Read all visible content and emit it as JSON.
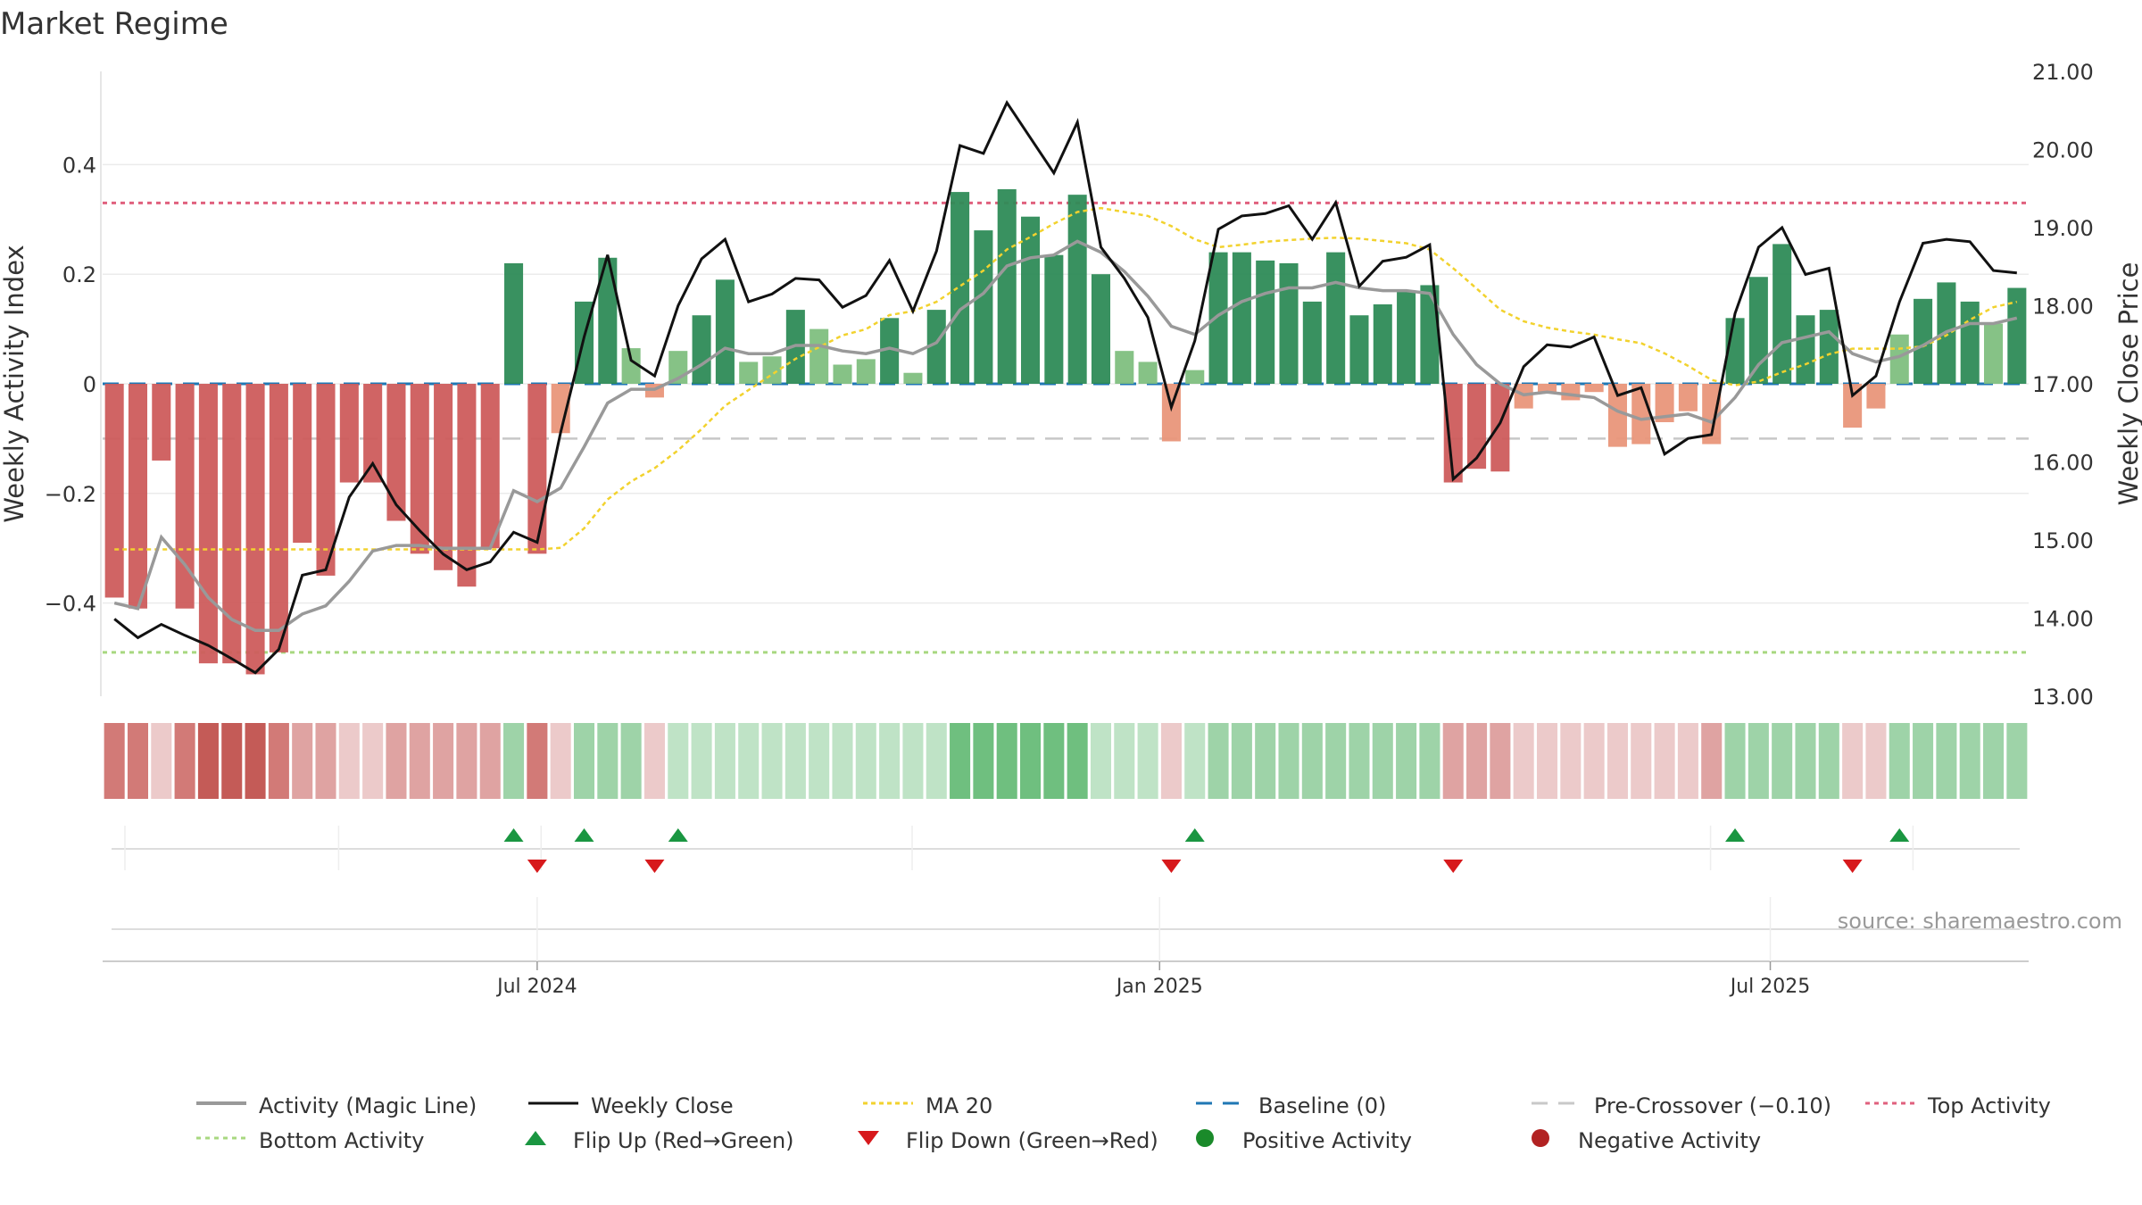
{
  "chart_data": {
    "type": "bar",
    "title": "Market Regime",
    "ylabel_left": "Weekly Activity Index",
    "ylabel_right": "Weekly Close Price",
    "source": "source: sharemaestro.com",
    "left_axis": {
      "ylim": [
        -0.57,
        0.57
      ],
      "ticks": [
        0.4,
        0.2,
        0,
        -0.2,
        -0.4
      ],
      "tick_labels": [
        "0.4",
        "0.2",
        "0",
        "−0.2",
        "−0.4"
      ]
    },
    "right_axis": {
      "ylim": [
        13.0,
        21.0
      ],
      "ticks": [
        21,
        20,
        19,
        18,
        17,
        16,
        15,
        14,
        13
      ],
      "tick_labels": [
        "21.00",
        "20.00",
        "19.00",
        "18.00",
        "17.00",
        "16.00",
        "15.00",
        "14.00",
        "13.00"
      ]
    },
    "x_ticks": [
      {
        "index": 18,
        "label": "Jul 2024"
      },
      {
        "index": 44.5,
        "label": "Jan 2025"
      },
      {
        "index": 70.5,
        "label": "Jul 2025"
      }
    ],
    "reference_lines": {
      "top_activity": 0.33,
      "bottom_activity": -0.49,
      "pre_crossover": -0.1,
      "baseline": 0
    },
    "activity": [
      -0.39,
      -0.41,
      -0.14,
      -0.41,
      -0.51,
      -0.51,
      -0.53,
      -0.49,
      -0.29,
      -0.35,
      -0.18,
      -0.18,
      -0.25,
      -0.31,
      -0.34,
      -0.37,
      -0.3,
      0.22,
      -0.31,
      -0.09,
      0.15,
      0.23,
      0.065,
      -0.025,
      0.06,
      0.125,
      0.19,
      0.04,
      0.05,
      0.135,
      0.1,
      0.035,
      0.045,
      0.12,
      0.02,
      0.135,
      0.35,
      0.28,
      0.355,
      0.305,
      0.235,
      0.345,
      0.2,
      0.06,
      0.04,
      -0.105,
      0.025,
      0.24,
      0.24,
      0.225,
      0.22,
      0.15,
      0.24,
      0.125,
      0.145,
      0.17,
      0.18,
      -0.18,
      -0.155,
      -0.16,
      -0.045,
      -0.015,
      -0.03,
      -0.015,
      -0.115,
      -0.11,
      -0.07,
      -0.05,
      -0.11,
      0.12,
      0.195,
      0.255,
      0.125,
      0.135,
      -0.08,
      -0.045,
      0.09,
      0.155,
      0.185,
      0.15,
      0.11,
      0.175
    ],
    "magic_line": [
      -0.4,
      -0.41,
      -0.28,
      -0.33,
      -0.39,
      -0.43,
      -0.45,
      -0.45,
      -0.42,
      -0.405,
      -0.36,
      -0.305,
      -0.295,
      -0.295,
      -0.3,
      -0.3,
      -0.3,
      -0.195,
      -0.215,
      -0.19,
      -0.115,
      -0.035,
      -0.01,
      -0.01,
      0.01,
      0.035,
      0.065,
      0.055,
      0.055,
      0.07,
      0.07,
      0.06,
      0.055,
      0.065,
      0.055,
      0.075,
      0.135,
      0.165,
      0.215,
      0.23,
      0.235,
      0.26,
      0.24,
      0.205,
      0.16,
      0.105,
      0.09,
      0.125,
      0.15,
      0.165,
      0.175,
      0.175,
      0.185,
      0.175,
      0.17,
      0.17,
      0.165,
      0.09,
      0.035,
      0.0,
      -0.02,
      -0.015,
      -0.02,
      -0.025,
      -0.05,
      -0.065,
      -0.06,
      -0.055,
      -0.07,
      -0.025,
      0.035,
      0.075,
      0.085,
      0.095,
      0.055,
      0.04,
      0.05,
      0.07,
      0.095,
      0.11,
      0.11,
      0.12
    ],
    "weekly_close": [
      13.99,
      13.75,
      13.92,
      13.78,
      13.65,
      13.48,
      13.3,
      13.6,
      14.55,
      14.62,
      15.55,
      15.98,
      15.45,
      15.12,
      14.82,
      14.62,
      14.72,
      15.1,
      14.97,
      16.38,
      17.6,
      18.65,
      17.3,
      17.1,
      18.0,
      18.6,
      18.85,
      18.05,
      18.15,
      18.35,
      18.33,
      17.98,
      18.13,
      18.58,
      17.93,
      18.7,
      20.05,
      19.95,
      20.6,
      20.15,
      19.7,
      20.35,
      18.75,
      18.35,
      17.85,
      16.7,
      17.55,
      18.98,
      19.15,
      19.18,
      19.28,
      18.85,
      19.32,
      18.25,
      18.57,
      18.62,
      18.78,
      15.78,
      16.05,
      16.5,
      17.22,
      17.5,
      17.47,
      17.6,
      16.85,
      16.95,
      16.1,
      16.3,
      16.35,
      17.9,
      18.75,
      19.0,
      18.4,
      18.48,
      16.85,
      17.1,
      18.05,
      18.8,
      18.85,
      18.82,
      18.45,
      18.42
    ],
    "ma20": [
      14.88,
      14.88,
      14.88,
      14.88,
      14.88,
      14.88,
      14.88,
      14.88,
      14.88,
      14.88,
      14.88,
      14.88,
      14.88,
      14.88,
      14.88,
      14.88,
      14.88,
      14.88,
      14.88,
      14.9,
      15.15,
      15.52,
      15.75,
      15.92,
      16.15,
      16.42,
      16.72,
      16.92,
      17.12,
      17.32,
      17.47,
      17.62,
      17.7,
      17.88,
      17.93,
      18.05,
      18.25,
      18.45,
      18.72,
      18.88,
      19.05,
      19.2,
      19.25,
      19.2,
      19.15,
      19.02,
      18.85,
      18.75,
      18.78,
      18.82,
      18.84,
      18.86,
      18.87,
      18.86,
      18.83,
      18.8,
      18.72,
      18.48,
      18.22,
      17.95,
      17.8,
      17.72,
      17.67,
      17.63,
      17.57,
      17.52,
      17.39,
      17.23,
      17.05,
      16.98,
      17.03,
      17.15,
      17.25,
      17.38,
      17.45,
      17.45,
      17.45,
      17.48,
      17.62,
      17.82,
      17.98,
      18.05
    ],
    "regime_strip": [
      -3,
      -3,
      -1,
      -3,
      -4,
      -4,
      -4,
      -3,
      -2,
      -2,
      -1,
      -1,
      -2,
      -2,
      -2,
      -2,
      -2,
      2,
      -3,
      -1,
      2,
      2,
      2,
      -1,
      1,
      1,
      1,
      1,
      1,
      1,
      1,
      1,
      1,
      1,
      1,
      1,
      3,
      3,
      3,
      3,
      3,
      3,
      1,
      1,
      1,
      -1,
      1,
      2,
      2,
      2,
      2,
      2,
      2,
      2,
      2,
      2,
      2,
      -2,
      -2,
      -2,
      -1,
      -1,
      -1,
      -1,
      -1,
      -1,
      -1,
      -1,
      -2,
      2,
      2,
      2,
      2,
      2,
      -1,
      -1,
      2,
      2,
      2,
      2,
      2,
      2
    ],
    "flips": [
      {
        "index": 17,
        "type": "up"
      },
      {
        "index": 18,
        "type": "down"
      },
      {
        "index": 20,
        "type": "up"
      },
      {
        "index": 23,
        "type": "down"
      },
      {
        "index": 24,
        "type": "up"
      },
      {
        "index": 45,
        "type": "down"
      },
      {
        "index": 46,
        "type": "up"
      },
      {
        "index": 57,
        "type": "down"
      },
      {
        "index": 69,
        "type": "up"
      },
      {
        "index": 74,
        "type": "down"
      },
      {
        "index": 76,
        "type": "up"
      }
    ],
    "legend": [
      {
        "key": "magic",
        "label": "Activity (Magic Line)"
      },
      {
        "key": "close",
        "label": "Weekly Close"
      },
      {
        "key": "ma20",
        "label": "MA 20"
      },
      {
        "key": "baseline",
        "label": "Baseline (0)"
      },
      {
        "key": "precross",
        "label": "Pre-Crossover (−0.10)"
      },
      {
        "key": "top",
        "label": "Top Activity"
      },
      {
        "key": "bottom",
        "label": "Bottom Activity"
      },
      {
        "key": "flipup",
        "label": "Flip Up (Red→Green)"
      },
      {
        "key": "flipdown",
        "label": "Flip Down (Green→Red)"
      },
      {
        "key": "pos",
        "label": "Positive Activity"
      },
      {
        "key": "neg",
        "label": "Negative Activity"
      }
    ],
    "colors": {
      "strong_green": "#2e8b57",
      "light_green": "#7fbf7f",
      "strong_red": "#cd5c5c",
      "light_red": "#e9967a",
      "magic_line": "#999999",
      "weekly_close": "#111111",
      "ma20": "#f2d22e",
      "baseline": "#1f77b4",
      "pre_crossover": "#c8c8c8",
      "top_activity": "#e0607e",
      "bottom_activity": "#a8d880",
      "flip_up": "#1a9641",
      "flip_down": "#d7191c",
      "positive_dot": "#1a8a2a",
      "negative_dot": "#b22222"
    }
  }
}
